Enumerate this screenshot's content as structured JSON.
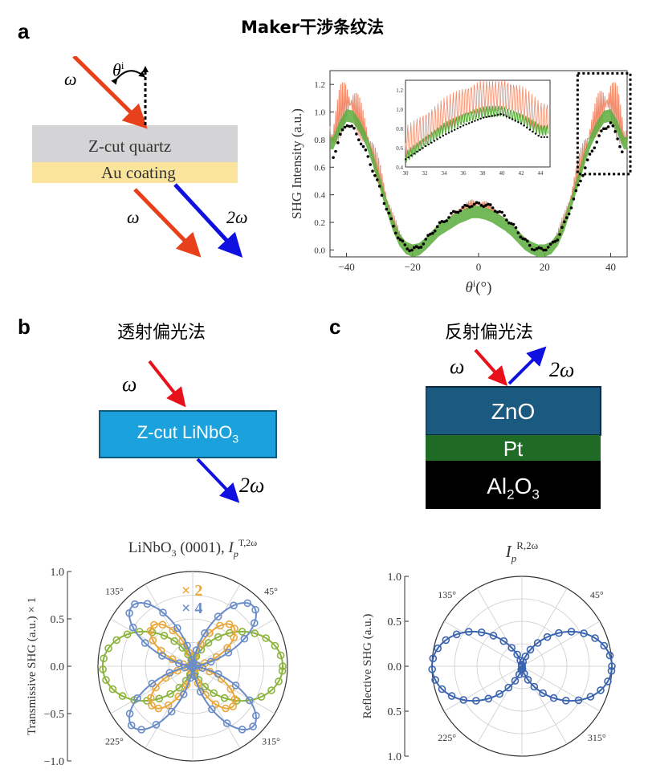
{
  "panel_a": {
    "letter": "a",
    "title": "Maker干涉条纹法",
    "omega": "ω",
    "two_omega": "2ω",
    "theta_base": "θ",
    "theta_sup": "i",
    "quartz_label": "Z-cut quartz",
    "au_label": "Au coating",
    "colors": {
      "input": "#e8401a",
      "shg": "#1010e0",
      "quartz": "#d4d4d6",
      "au": "#fbe49c"
    }
  },
  "panel_b": {
    "letter": "b",
    "title": "透射偏光法",
    "omega": "ω",
    "two_omega": "2ω",
    "crystal_main": "Z-cut LiNbO",
    "crystal_sub": "3",
    "colors": {
      "crystal": "#1ba2dc",
      "input": "#e8101a",
      "shg": "#1010e0"
    }
  },
  "panel_c": {
    "letter": "c",
    "title": "反射偏光法",
    "omega": "ω",
    "two_omega": "2ω",
    "layers": {
      "zno": "ZnO",
      "pt": "Pt",
      "al_a": "Al",
      "al_sub1": "2",
      "al_b": "O",
      "al_sub2": "3"
    },
    "colors": {
      "zno": "#1b5a80",
      "pt": "#1f6b26",
      "al2o3": "#000000"
    }
  },
  "chart_data": [
    {
      "type": "line",
      "panel": "a",
      "xlabel": "θi(°)",
      "ylabel": "SHG Intensity (a.u.)",
      "xlim": [
        -45,
        45
      ],
      "ylim": [
        -0.05,
        1.3
      ],
      "xticks": [
        "-40",
        "-20",
        "0",
        "20",
        "40"
      ],
      "yticks": [
        "0.0",
        "0.2",
        "0.4",
        "0.6",
        "0.8",
        "1.0",
        "1.2"
      ],
      "series": [
        {
          "color": "#f08a6a",
          "x": [
            -44,
            -42,
            -40,
            -38,
            -36,
            -34,
            -32,
            -30,
            -28,
            -26,
            -24,
            -22,
            -20,
            -18,
            -16,
            -14,
            -12,
            -10,
            -8,
            -6,
            -4,
            -2,
            0,
            2,
            4,
            6,
            8,
            10,
            12,
            14,
            16,
            18,
            20,
            22,
            24,
            26,
            28,
            30,
            32,
            34,
            36,
            38,
            40,
            42,
            44
          ],
          "y": [
            0.82,
            1.0,
            1.08,
            1.05,
            0.96,
            0.84,
            0.7,
            0.55,
            0.38,
            0.22,
            0.1,
            0.03,
            0.0,
            0.02,
            0.07,
            0.13,
            0.18,
            0.21,
            0.25,
            0.29,
            0.31,
            0.34,
            0.33,
            0.33,
            0.3,
            0.26,
            0.22,
            0.18,
            0.13,
            0.08,
            0.03,
            0.01,
            0.0,
            0.03,
            0.1,
            0.22,
            0.38,
            0.56,
            0.72,
            0.86,
            0.98,
            1.06,
            1.08,
            1.0,
            0.82
          ]
        },
        {
          "color": "#5aab3c",
          "x": [
            -44,
            -42,
            -40,
            -38,
            -36,
            -34,
            -32,
            -30,
            -28,
            -26,
            -24,
            -22,
            -20,
            -18,
            -16,
            -14,
            -12,
            -10,
            -8,
            -6,
            -4,
            -2,
            0,
            2,
            4,
            6,
            8,
            10,
            12,
            14,
            16,
            18,
            20,
            22,
            24,
            26,
            28,
            30,
            32,
            34,
            36,
            38,
            40,
            42,
            44
          ],
          "y": [
            0.78,
            0.9,
            0.98,
            0.97,
            0.9,
            0.8,
            0.66,
            0.5,
            0.34,
            0.19,
            0.08,
            0.02,
            0.0,
            0.01,
            0.05,
            0.1,
            0.15,
            0.18,
            0.21,
            0.24,
            0.26,
            0.28,
            0.28,
            0.27,
            0.25,
            0.22,
            0.19,
            0.15,
            0.1,
            0.05,
            0.02,
            0.0,
            0.0,
            0.02,
            0.08,
            0.19,
            0.34,
            0.5,
            0.66,
            0.8,
            0.9,
            0.97,
            0.98,
            0.9,
            0.78
          ]
        },
        {
          "color": "#000000",
          "x": [
            -44,
            -42,
            -40,
            -38,
            -36,
            -34,
            -32,
            -30,
            -28,
            -26,
            -24,
            -22,
            -20,
            -18,
            -16,
            -14,
            -12,
            -10,
            -8,
            -6,
            -4,
            -2,
            0,
            2,
            4,
            6,
            8,
            10,
            12,
            14,
            16,
            18,
            20,
            22,
            24,
            26,
            28,
            30,
            32,
            34,
            36,
            38,
            40,
            42,
            44
          ],
          "y": [
            0.68,
            0.82,
            0.92,
            0.88,
            0.8,
            0.7,
            0.58,
            0.45,
            0.31,
            0.18,
            0.08,
            0.02,
            0.0,
            0.02,
            0.07,
            0.13,
            0.18,
            0.22,
            0.26,
            0.29,
            0.31,
            0.33,
            0.33,
            0.33,
            0.31,
            0.28,
            0.24,
            0.19,
            0.13,
            0.07,
            0.02,
            0.0,
            0.01,
            0.03,
            0.09,
            0.19,
            0.31,
            0.45,
            0.58,
            0.7,
            0.8,
            0.88,
            0.92,
            0.82,
            0.68
          ]
        }
      ],
      "inset": {
        "xlim": [
          30,
          45
        ],
        "ylim": [
          0.4,
          1.3
        ],
        "xticks": [
          "30",
          "32",
          "34",
          "36",
          "38",
          "40",
          "42",
          "44"
        ],
        "yticks": [
          "0.4",
          "0.6",
          "0.8",
          "1.0",
          "1.2"
        ]
      }
    },
    {
      "type": "scatter",
      "subtype": "polar",
      "panel": "b",
      "title_main": "LiNbO",
      "title_sub3": "3",
      "title_rest": " (0001), ",
      "title_I": "I",
      "title_sub": "p",
      "title_sup": "T,2ω",
      "ylabel": "Transmissive SHG (a.u.) × 1",
      "yticks": [
        "1.0",
        "0.5",
        "0.0",
        "-0.5",
        "-1.0"
      ],
      "angle_labels": [
        "45°",
        "135°",
        "225°",
        "315°"
      ],
      "multipliers": [
        {
          "label": "× 2",
          "color": "#e8a83c"
        },
        {
          "label": "× 4",
          "color": "#6a8cc8"
        }
      ],
      "series": [
        {
          "color": "#8cb43c",
          "function": "0.95*cos(theta)^2",
          "rotation_deg": 0
        },
        {
          "color": "#e8a83c",
          "function": "0.6*sin(2*theta)^2",
          "rotation_deg": 0
        },
        {
          "color": "#6a8cc8",
          "function": "0.9*sin(2*theta)^2",
          "rotation_deg": 0
        }
      ]
    },
    {
      "type": "scatter",
      "subtype": "polar",
      "panel": "c",
      "title_I": "I",
      "title_sub": "p",
      "title_sup": "R,2ω",
      "ylabel": "Reflective SHG (a.u.)",
      "yticks": [
        "1.0",
        "0.5",
        "0.0",
        "0.5",
        "1.0"
      ],
      "angle_labels": [
        "45°",
        "135°",
        "225°",
        "315°"
      ],
      "series": [
        {
          "color": "#3a64b0",
          "function": "1.0*cos(theta)^2",
          "rotation_deg": 0
        }
      ]
    }
  ]
}
